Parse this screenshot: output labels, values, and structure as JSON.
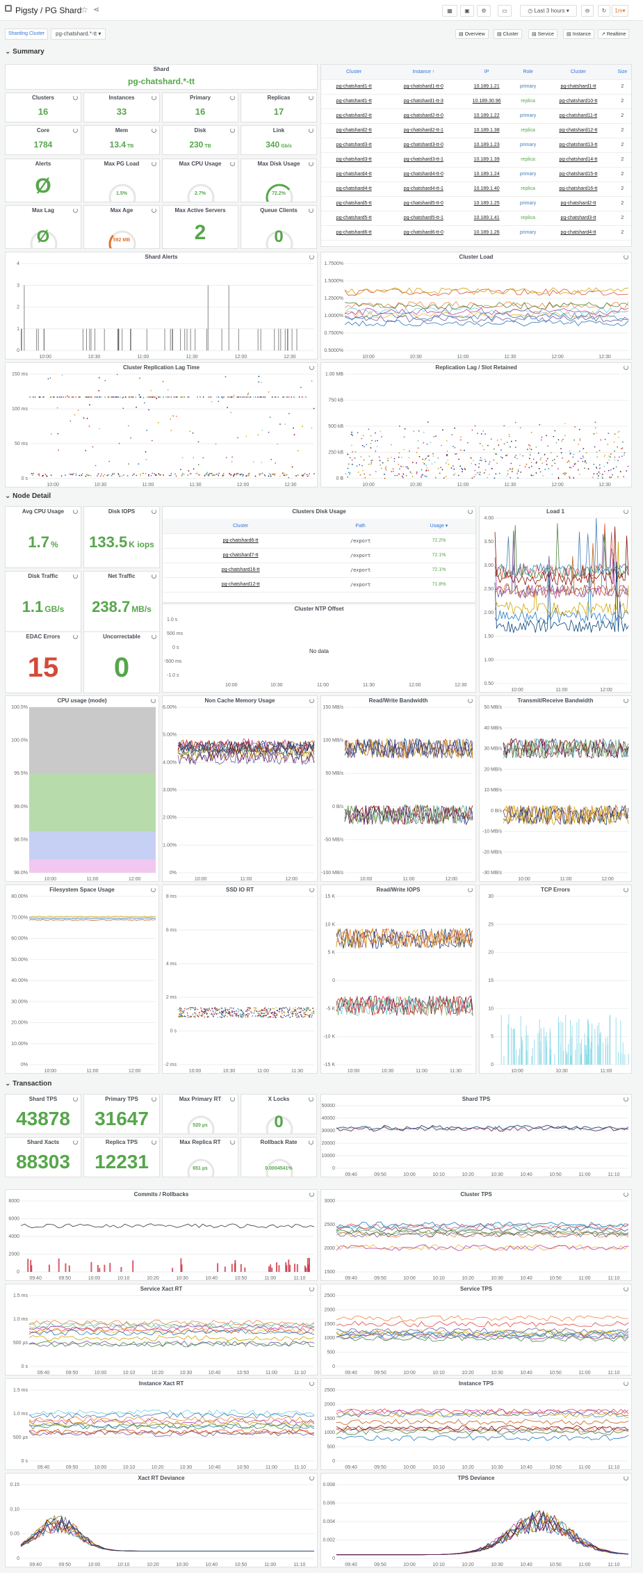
{
  "app": {
    "title": "Pigsty / PG Shard",
    "time_range": "Last 3 hours",
    "refresh": "1m"
  },
  "links": {
    "overview": "Overview",
    "cluster": "Cluster",
    "service": "Service",
    "instance": "Instance",
    "realtime": "Realtime"
  },
  "vars": {
    "label": "Sharding Cluster",
    "value": "pg-chatshard.*-tt"
  },
  "sections": {
    "summary": "Summary",
    "node": "Node Detail",
    "txn": "Transaction"
  },
  "summary": {
    "shard": {
      "title": "Shard",
      "value": "pg-chatshard.*-tt"
    },
    "stats": [
      {
        "title": "Clusters",
        "value": "16"
      },
      {
        "title": "Instances",
        "value": "33"
      },
      {
        "title": "Primary",
        "value": "16"
      },
      {
        "title": "Replicas",
        "value": "17"
      },
      {
        "title": "Core",
        "value": "1784"
      },
      {
        "title": "Mem",
        "value": "13.4",
        "unit": "TB"
      },
      {
        "title": "Disk",
        "value": "230",
        "unit": "TB"
      },
      {
        "title": "Link",
        "value": "340",
        "unit": "Gb/s"
      }
    ],
    "gauges": [
      {
        "title": "Alerts",
        "value": "Ø",
        "kind": "big"
      },
      {
        "title": "Max PG Load",
        "value": "1.5%",
        "pct": 0.02
      },
      {
        "title": "Max CPU Usage",
        "value": "2.7%",
        "pct": 0.03
      },
      {
        "title": "Max Disk Usage",
        "value": "72.2%",
        "pct": 0.72
      },
      {
        "title": "Max Lag",
        "value": "Ø",
        "kind": "bigsmall"
      },
      {
        "title": "Max Age",
        "value": "592 MB",
        "pct": 0.3,
        "color": "#e0752d"
      },
      {
        "title": "Max Active Servers",
        "value": "2",
        "kind": "big"
      },
      {
        "title": "Queue Clients",
        "value": "0",
        "kind": "bigsmall"
      }
    ],
    "table": {
      "headers": [
        "Cluster",
        "Instance ↑",
        "IP",
        "Role",
        "Cluster",
        "Size"
      ],
      "rows": [
        [
          "pg-chatshard1-tt",
          "pg-chatshard1-tt-0",
          "10.189.1.21",
          "primary",
          "pg-chatshard1-tt",
          "2"
        ],
        [
          "pg-chatshard1-tt",
          "pg-chatshard1-tt-3",
          "10.189.30.96",
          "replica",
          "pg-chatshard10-tt",
          "2"
        ],
        [
          "pg-chatshard2-tt",
          "pg-chatshard2-tt-0",
          "10.189.1.22",
          "primary",
          "pg-chatshard11-tt",
          "2"
        ],
        [
          "pg-chatshard2-tt",
          "pg-chatshard2-tt-1",
          "10.189.1.38",
          "replica",
          "pg-chatshard12-tt",
          "2"
        ],
        [
          "pg-chatshard3-tt",
          "pg-chatshard3-tt-0",
          "10.189.1.23",
          "primary",
          "pg-chatshard13-tt",
          "2"
        ],
        [
          "pg-chatshard3-tt",
          "pg-chatshard3-tt-1",
          "10.189.1.39",
          "replica",
          "pg-chatshard14-tt",
          "2"
        ],
        [
          "pg-chatshard4-tt",
          "pg-chatshard4-tt-0",
          "10.189.1.24",
          "primary",
          "pg-chatshard15-tt",
          "2"
        ],
        [
          "pg-chatshard4-tt",
          "pg-chatshard4-tt-1",
          "10.189.1.40",
          "replica",
          "pg-chatshard16-tt",
          "2"
        ],
        [
          "pg-chatshard5-tt",
          "pg-chatshard5-tt-0",
          "10.189.1.25",
          "primary",
          "pg-chatshard2-tt",
          "2"
        ],
        [
          "pg-chatshard5-tt",
          "pg-chatshard5-tt-1",
          "10.189.1.41",
          "replica",
          "pg-chatshard3-tt",
          "2"
        ],
        [
          "pg-chatshard6-tt",
          "pg-chatshard6-tt-0",
          "10.189.1.26",
          "primary",
          "pg-chatshard4-tt",
          "2"
        ]
      ]
    }
  },
  "node": {
    "stats": [
      {
        "title": "Avg CPU Usage",
        "value": "1.7",
        "unit": "%"
      },
      {
        "title": "Disk IOPS",
        "value": "133.5",
        "unit": "K iops"
      },
      {
        "title": "Disk Traffic",
        "value": "1.1",
        "unit": "GB/s"
      },
      {
        "title": "Net Traffic",
        "value": "238.7",
        "unit": "MB/s"
      },
      {
        "title": "EDAC Errors",
        "value": "15",
        "color": "#d44a3a"
      },
      {
        "title": "Uncorrectable",
        "value": "0"
      }
    ],
    "disk_table": {
      "title": "Clusters Disk Usage",
      "headers": [
        "Cluster",
        "Path",
        "Usage ▾"
      ],
      "rows": [
        [
          "pg-chatshard6-tt",
          "/export",
          "72.2%"
        ],
        [
          "pg-chatshard7-tt",
          "/export",
          "72.1%"
        ],
        [
          "pg-chatshard16-tt",
          "/export",
          "72.1%"
        ],
        [
          "pg-chatshard12-tt",
          "/export",
          "71.8%"
        ]
      ]
    },
    "ntp": {
      "title": "Cluster NTP Offset",
      "nodata": "No data"
    }
  },
  "txn": {
    "stats": [
      {
        "title": "Shard TPS",
        "value": "43878"
      },
      {
        "title": "Primary TPS",
        "value": "31647"
      },
      {
        "title": "Max Primary RT",
        "value": "520 µs",
        "kind": "gauge"
      },
      {
        "title": "X Locks",
        "value": "0",
        "kind": "bigsmall"
      },
      {
        "title": "Shard Xacts",
        "value": "88303"
      },
      {
        "title": "Replica TPS",
        "value": "12231"
      },
      {
        "title": "Max Replica RT",
        "value": "651 µs",
        "kind": "gauge"
      },
      {
        "title": "Rollback Rate",
        "value": "0.0004541%",
        "kind": "gauge"
      }
    ]
  },
  "charts": [
    {
      "id": "c1",
      "title": "Shard Alerts",
      "type": "bar",
      "yt": [
        "4",
        "3",
        "2",
        "1",
        "0"
      ],
      "xt": [
        "10:00",
        "10:30",
        "11:00",
        "11:30",
        "12:00",
        "12:30"
      ]
    },
    {
      "id": "c2",
      "title": "Cluster Load",
      "type": "line",
      "yt": [
        "1.7500%",
        "1.5000%",
        "1.2500%",
        "1.0000%",
        "0.7500%",
        "0.5000%"
      ],
      "xt": [
        "10:00",
        "10:30",
        "11:00",
        "11:30",
        "12:00",
        "12:30"
      ]
    },
    {
      "id": "c3",
      "title": "Cluster Replication Lag Time",
      "type": "scatter",
      "yt": [
        "150 ms",
        "100 ms",
        "50 ms",
        "0 s"
      ],
      "xt": [
        "10:00",
        "10:30",
        "11:00",
        "11:30",
        "12:00",
        "12:30"
      ]
    },
    {
      "id": "c4",
      "title": "Replication Lag / Slot Retained",
      "type": "scatter",
      "yt": [
        "1.00 MB",
        "750 kB",
        "500 kB",
        "250 kB",
        "0 B"
      ],
      "xt": [
        "10:00",
        "10:30",
        "11:00",
        "11:30",
        "12:00",
        "12:30"
      ]
    },
    {
      "id": "c5",
      "title": "Load 1",
      "type": "line",
      "yt": [
        "4.00",
        "3.50",
        "3.00",
        "2.50",
        "2.00",
        "1.50",
        "1.00",
        "0.50"
      ],
      "xt": [
        "10:00",
        "11:00",
        "12:00"
      ]
    },
    {
      "id": "c6",
      "title": "CPU usage (mode)",
      "type": "area",
      "yt": [
        "100.5%",
        "100.0%",
        "99.5%",
        "99.0%",
        "98.5%",
        "98.0%"
      ],
      "xt": [
        "10:00",
        "11:00",
        "12:00"
      ]
    },
    {
      "id": "c7",
      "title": "Non Cache Memory Usage",
      "type": "line",
      "yt": [
        "6.00%",
        "5.00%",
        "4.00%",
        "3.00%",
        "2.00%",
        "1.00%",
        "0%"
      ],
      "xt": [
        "10:00",
        "11:00",
        "12:00"
      ]
    },
    {
      "id": "c8",
      "title": "Read/Write Bandwidth",
      "type": "line",
      "yt": [
        "150 MB/s",
        "100 MB/s",
        "50 MB/s",
        "0 B/s",
        "-50 MB/s",
        "-100 MB/s"
      ],
      "xt": [
        "10:00",
        "11:00",
        "12:00"
      ]
    },
    {
      "id": "c9",
      "title": "Transmit/Receive Bandwidth",
      "type": "line",
      "yt": [
        "50 MB/s",
        "40 MB/s",
        "30 MB/s",
        "20 MB/s",
        "10 MB/s",
        "0 B/s",
        "-10 MB/s",
        "-20 MB/s",
        "-30 MB/s"
      ],
      "xt": [
        "10:00",
        "11:00",
        "12:00"
      ]
    },
    {
      "id": "c10",
      "title": "Filesystem Space Usage",
      "type": "line",
      "yt": [
        "80.00%",
        "70.00%",
        "60.00%",
        "50.00%",
        "40.00%",
        "30.00%",
        "20.00%",
        "10.00%",
        "0%"
      ],
      "xt": [
        "10:00",
        "11:00",
        "12:00"
      ]
    },
    {
      "id": "c11",
      "title": "SSD IO RT",
      "type": "scatter",
      "yt": [
        "8 ms",
        "6 ms",
        "4 ms",
        "2 ms",
        "0 s",
        "-2 ms"
      ],
      "xt": [
        "10:00",
        "10:30",
        "11:00",
        "11:30"
      ]
    },
    {
      "id": "c12",
      "title": "Read/Write IOPS",
      "type": "line",
      "yt": [
        "15 K",
        "10 K",
        "5 K",
        "0",
        "-5 K",
        "-10 K",
        "-15 K"
      ],
      "xt": [
        "10:00",
        "10:30",
        "11:00",
        "11:30"
      ]
    },
    {
      "id": "c13",
      "title": "TCP Errors",
      "type": "bar",
      "yt": [
        "30",
        "25",
        "20",
        "15",
        "10",
        "5",
        "0"
      ],
      "xt": [
        "10:00",
        "10:30",
        "11:00"
      ]
    },
    {
      "id": "c14",
      "title": "Shard TPS",
      "type": "line",
      "yt": [
        "50000",
        "40000",
        "30000",
        "20000",
        "10000",
        "0"
      ],
      "xt": [
        "09:40",
        "09:50",
        "10:00",
        "10:10",
        "10:20",
        "10:30",
        "10:40",
        "10:50",
        "11:00",
        "11:10"
      ]
    },
    {
      "id": "c15",
      "title": "Commits / Rollbacks",
      "type": "bar",
      "yt": [
        "8000",
        "6000",
        "4000",
        "2000",
        "0"
      ],
      "xt": [
        "09:40",
        "09:50",
        "10:00",
        "10:10",
        "10:20",
        "10:30",
        "10:40",
        "10:50",
        "11:00",
        "11:10"
      ]
    },
    {
      "id": "c16",
      "title": "Cluster TPS",
      "type": "line",
      "yt": [
        "3000",
        "2500",
        "2000",
        "1500"
      ],
      "xt": [
        "09:40",
        "09:50",
        "10:00",
        "10:10",
        "10:20",
        "10:30",
        "10:40",
        "10:50",
        "11:00",
        "11:10"
      ]
    },
    {
      "id": "c17",
      "title": "Service Xact RT",
      "type": "line",
      "yt": [
        "1.5 ms",
        "1.0 ms",
        "500 µs",
        "0 s"
      ],
      "xt": [
        "09:40",
        "09:50",
        "10:00",
        "10:10",
        "10:20",
        "10:30",
        "10:40",
        "10:50",
        "11:00",
        "11:10"
      ]
    },
    {
      "id": "c18",
      "title": "Service TPS",
      "type": "line",
      "yt": [
        "2500",
        "2000",
        "1500",
        "1000",
        "500",
        "0"
      ],
      "xt": [
        "09:40",
        "09:50",
        "10:00",
        "10:10",
        "10:20",
        "10:30",
        "10:40",
        "10:50",
        "11:00",
        "11:10"
      ]
    },
    {
      "id": "c19",
      "title": "Instance Xact RT",
      "type": "line",
      "yt": [
        "1.5 ms",
        "1.0 ms",
        "500 µs",
        "0 s"
      ],
      "xt": [
        "09:40",
        "09:50",
        "10:00",
        "10:10",
        "10:20",
        "10:30",
        "10:40",
        "10:50",
        "11:00",
        "11:10"
      ]
    },
    {
      "id": "c20",
      "title": "Instance TPS",
      "type": "line",
      "yt": [
        "2500",
        "2000",
        "1500",
        "1000",
        "500",
        "0"
      ],
      "xt": [
        "09:40",
        "09:50",
        "10:00",
        "10:10",
        "10:20",
        "10:30",
        "10:40",
        "10:50",
        "11:00",
        "11:10"
      ]
    },
    {
      "id": "c21",
      "title": "Xact RT Deviance",
      "type": "line",
      "yt": [
        "0.15",
        "0.10",
        "0.05",
        "0"
      ],
      "xt": [
        "09:40",
        "09:50",
        "10:00",
        "10:10",
        "10:20",
        "10:30",
        "10:40",
        "10:50",
        "11:00",
        "11:10"
      ]
    },
    {
      "id": "c22",
      "title": "TPS Deviance",
      "type": "line",
      "yt": [
        "0.008",
        "0.006",
        "0.004",
        "0.002",
        "0"
      ],
      "xt": [
        "09:40",
        "09:50",
        "10:00",
        "10:10",
        "10:20",
        "10:30",
        "10:40",
        "10:50",
        "11:00",
        "11:10"
      ]
    }
  ]
}
